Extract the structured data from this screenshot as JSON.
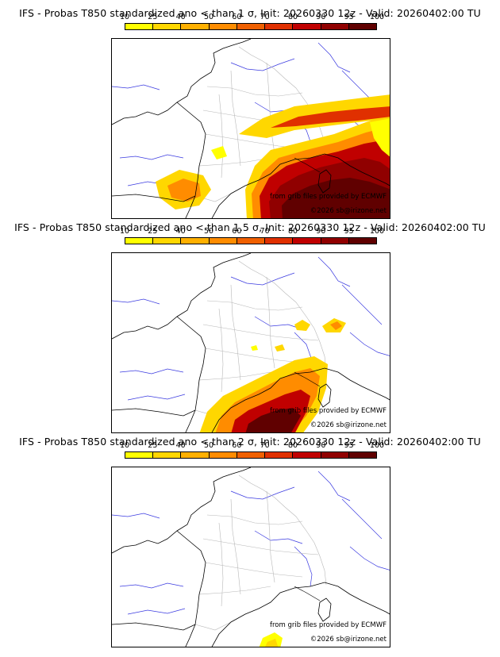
{
  "panels": [
    {
      "title": "IFS - Probas T850  standardized ano < than 1 σ, Init: 20260330 12z - Valid: 20260402:00 TU"
    },
    {
      "title": "IFS - Probas T850  standardized ano < than 1.5 σ, Init: 20260330 12z - Valid: 20260402:00 TU"
    },
    {
      "title": "IFS - Probas T850  standardized ano < than 2 σ, Init: 20260330 12z - Valid: 20260402:00 TU"
    }
  ],
  "colorbar": {
    "ticks": [
      "10",
      "25",
      "40",
      "50",
      "60",
      "70",
      "80",
      "90",
      "95",
      "100"
    ],
    "colors": [
      "#ffff00",
      "#ffd700",
      "#ffb000",
      "#ff8c00",
      "#f06000",
      "#e03000",
      "#c00000",
      "#900000",
      "#600000"
    ]
  },
  "credits": {
    "source": "from grib files provided by ECMWF",
    "copyright": "©2026 sb@irizone.net"
  }
}
